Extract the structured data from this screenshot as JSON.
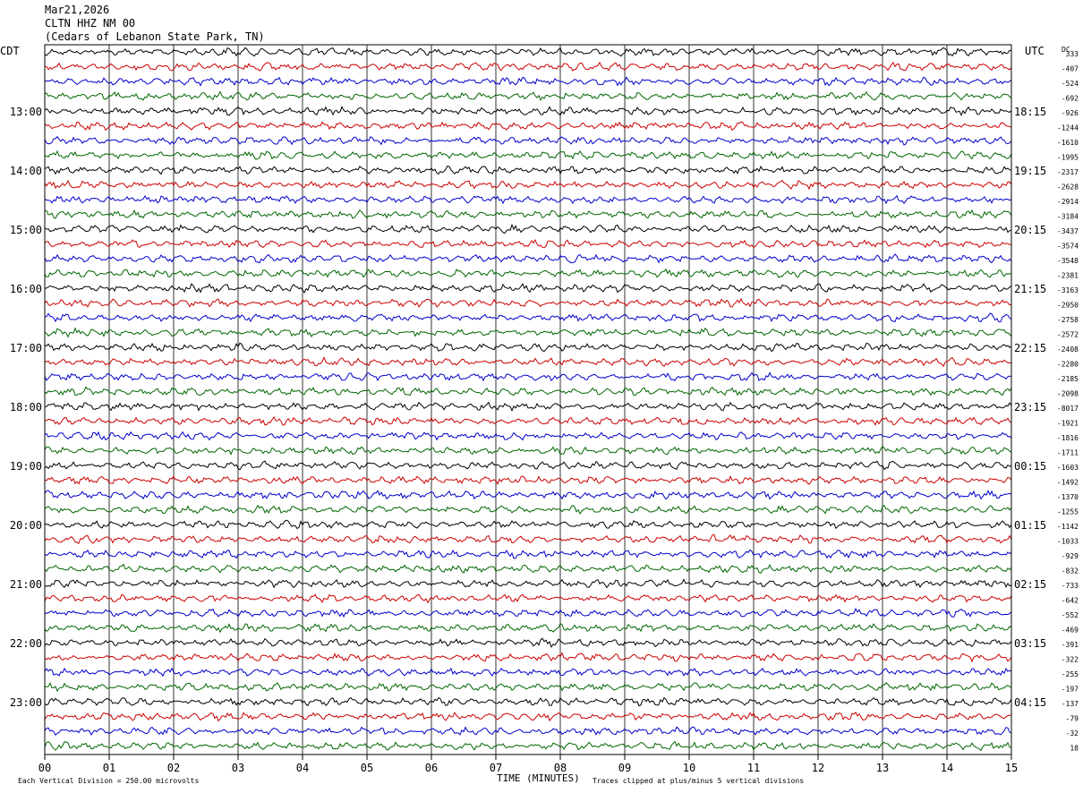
{
  "header": {
    "date": "Mar21,2026",
    "station": "CLTN HHZ NM 00",
    "location": "(Cedars of Lebanon State Park, TN)"
  },
  "left_zone_label": "CDT",
  "right_zone_label": "UTC",
  "dc_label": "DC",
  "footer": {
    "scale_note": "Each Vertical Division =  250.00 microvolts",
    "xlabel": "TIME (MINUTES)",
    "clip_note": "Traces clipped at plus/minus 5 vertical divisions"
  },
  "chart_data": {
    "type": "line",
    "x_ticks": [
      "00",
      "01",
      "02",
      "03",
      "04",
      "05",
      "06",
      "07",
      "08",
      "09",
      "10",
      "11",
      "12",
      "13",
      "14",
      "15"
    ],
    "xlim": [
      0,
      15
    ],
    "grid": true,
    "trace_colors": [
      "#000000",
      "#cc0000",
      "#0000cc",
      "#006600"
    ],
    "left_hour_labels": [
      "13:00",
      "14:00",
      "15:00",
      "16:00",
      "17:00",
      "18:00",
      "19:00",
      "20:00",
      "21:00",
      "22:00",
      "23:00"
    ],
    "right_hour_labels": [
      "18:15",
      "19:15",
      "20:15",
      "21:15",
      "22:15",
      "23:15",
      "00:15",
      "01:15",
      "02:15",
      "03:15",
      "04:15"
    ],
    "dc_offsets": [
      "333",
      "-407",
      "-524",
      "-692",
      "-926",
      "-1244",
      "-1610",
      "-1995",
      "-2317",
      "-2628",
      "-2914",
      "-3184",
      "-3437",
      "-3574",
      "-3548",
      "-2381",
      "-3163",
      "-2950",
      "-2758",
      "-2572",
      "-2408",
      "-2280",
      "-2185",
      "-2098",
      "-8017",
      "-1921",
      "-1816",
      "-1711",
      "-1603",
      "-1492",
      "-1370",
      "-1255",
      "-1142",
      "-1033",
      "-929",
      "-832",
      "-733",
      "-642",
      "-552",
      "-469",
      "-391",
      "-322",
      "-255",
      "-197",
      "-137",
      "-79",
      "-32",
      "18"
    ]
  }
}
